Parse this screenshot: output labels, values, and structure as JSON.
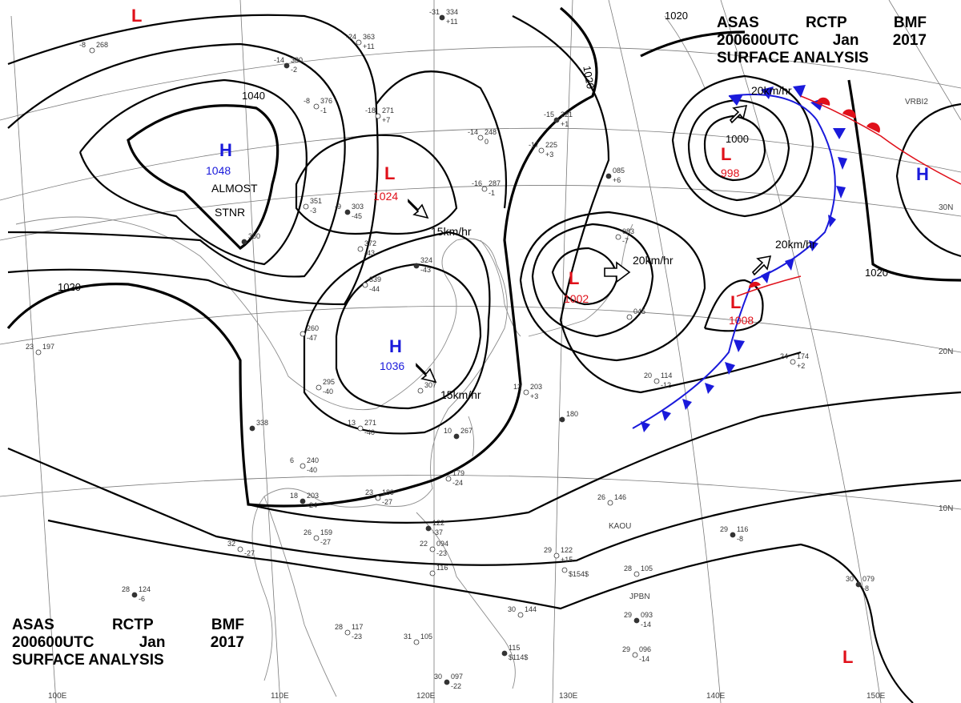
{
  "header": {
    "agency": "ASAS",
    "station": "RCTP",
    "office": "BMF",
    "time": "200600UTC",
    "month": "Jan",
    "year": "2017",
    "product": "SURFACE ANALYSIS"
  },
  "colors": {
    "high": "#1a1adb",
    "low": "#e0101a",
    "front_cold": "#1a1adb",
    "front_warm": "#e0101a",
    "isobar": "#000000",
    "grid": "#808080"
  },
  "isobar_labels": [
    "1040",
    "1020",
    "1020",
    "1020",
    "1020",
    "1000"
  ],
  "pressure_centers": [
    {
      "type": "H",
      "value": "1048",
      "note_1": "ALMOST",
      "note_2": "STNR"
    },
    {
      "type": "L",
      "value": "1024"
    },
    {
      "type": "H",
      "value": "1036"
    },
    {
      "type": "L",
      "value": "1002"
    },
    {
      "type": "L",
      "value": "998"
    },
    {
      "type": "L",
      "value": "1008"
    },
    {
      "type": "H",
      "value": ""
    },
    {
      "type": "L",
      "value": ""
    },
    {
      "type": "L",
      "value": ""
    }
  ],
  "motion_labels": [
    "15km/hr",
    "15km/hr",
    "20km/hr",
    "20km/hr",
    "20km/hr"
  ],
  "lat_labels": [
    "30N",
    "20N",
    "10N"
  ],
  "lon_labels": [
    "110E",
    "120E",
    "130E",
    "140E",
    "150E",
    "100E"
  ],
  "place_labels": [
    "KAOU",
    "JPBN",
    "VRBI2"
  ],
  "station_plots": [
    {
      "t": "-31",
      "p": "334",
      "m": "+11"
    },
    {
      "t": "-24",
      "p": "363",
      "m": "+11"
    },
    {
      "t": "-8",
      "p": "268",
      "m": ""
    },
    {
      "t": "-14",
      "p": "380",
      "m": "-2"
    },
    {
      "t": "-8",
      "p": "376",
      "m": "-1"
    },
    {
      "t": "-18",
      "p": "271",
      "m": "+7"
    },
    {
      "t": "-15",
      "p": "221",
      "m": "+1"
    },
    {
      "t": "-14",
      "p": "248",
      "m": "0"
    },
    {
      "t": "-17",
      "p": "225",
      "m": "+3"
    },
    {
      "t": "-9",
      "p": "303",
      "m": "-45"
    },
    {
      "t": "",
      "p": "351",
      "m": "-3"
    },
    {
      "t": "",
      "p": "372",
      "m": "-43"
    },
    {
      "t": "",
      "p": "324",
      "m": "-43"
    },
    {
      "t": "",
      "p": "339",
      "m": "-44"
    },
    {
      "t": "-16",
      "p": "287",
      "m": "-1"
    },
    {
      "t": "",
      "p": "380",
      "m": ""
    },
    {
      "t": "",
      "p": "260",
      "m": "-47"
    },
    {
      "t": "",
      "p": "295",
      "m": "-40"
    },
    {
      "t": "",
      "p": "338",
      "m": ""
    },
    {
      "t": "13",
      "p": "271",
      "m": "-40"
    },
    {
      "t": "6",
      "p": "240",
      "m": "-40"
    },
    {
      "t": "10",
      "p": "267",
      "m": ""
    },
    {
      "t": "",
      "p": "307",
      "m": ""
    },
    {
      "t": "13",
      "p": "203",
      "m": "+3"
    },
    {
      "t": "",
      "p": "180",
      "m": ""
    },
    {
      "t": "",
      "p": "179",
      "m": "-24"
    },
    {
      "t": "23",
      "p": "189",
      "m": "-27"
    },
    {
      "t": "18",
      "p": "203",
      "m": "-24"
    },
    {
      "t": "26",
      "p": "159",
      "m": "-27"
    },
    {
      "t": "32",
      "p": "",
      "m": "-27"
    },
    {
      "t": "28",
      "p": "124",
      "m": "-6"
    },
    {
      "t": "28",
      "p": "117",
      "m": "-23"
    },
    {
      "t": "31",
      "p": "105",
      "m": ""
    },
    {
      "t": "30",
      "p": "097",
      "m": "-22"
    },
    {
      "t": "30",
      "p": "144",
      "m": ""
    },
    {
      "t": "22",
      "p": "094",
      "m": "-23"
    },
    {
      "t": "",
      "p": "122",
      "m": "-37"
    },
    {
      "t": "29",
      "p": "122",
      "m": "+15"
    },
    {
      "t": "28",
      "p": "105",
      "m": ""
    },
    {
      "t": "29",
      "p": "093",
      "m": "-14"
    },
    {
      "t": "29",
      "p": "096",
      "m": "-14"
    },
    {
      "t": "26",
      "p": "146",
      "m": ""
    },
    {
      "t": "29",
      "p": "116",
      "m": "-8"
    },
    {
      "t": "20",
      "p": "114",
      "m": "-12"
    },
    {
      "t": "24",
      "p": "174",
      "m": "+2"
    },
    {
      "t": "30",
      "p": "079",
      "m": "-8"
    },
    {
      "t": "",
      "p": "083",
      "m": "-7"
    },
    {
      "t": "",
      "p": "045",
      "m": ""
    },
    {
      "t": "",
      "p": "085",
      "m": "+6"
    },
    {
      "t": "",
      "p": "116",
      "m": ""
    },
    {
      "t": "",
      "p": "",
      "m": "$154$"
    },
    {
      "t": "",
      "p": "115",
      "m": "$114$"
    },
    {
      "t": "23",
      "p": "197",
      "m": ""
    }
  ]
}
